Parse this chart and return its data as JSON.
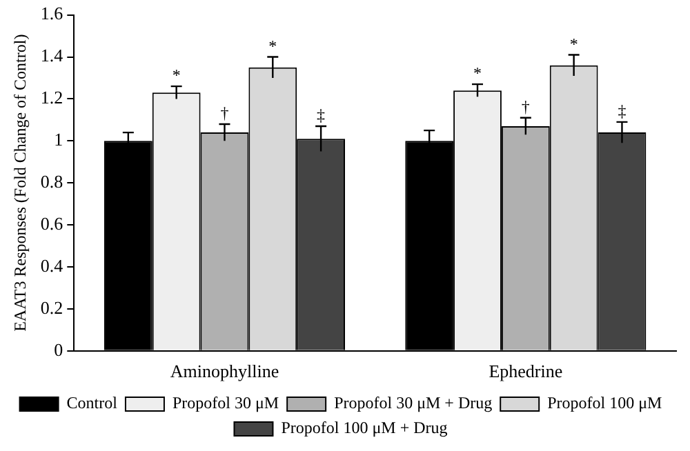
{
  "chart_data": {
    "type": "bar",
    "ylabel": "EAAT3 Responses (Fold Change of Control)",
    "categories": [
      "Aminophylline",
      "Ephedrine"
    ],
    "series": [
      {
        "name": "Control",
        "color": "#000000",
        "values": [
          1.0,
          1.0
        ],
        "errors": [
          0.04,
          0.05
        ]
      },
      {
        "name": "Propofol 30 μM",
        "color": "#eeeeee",
        "values": [
          1.23,
          1.24
        ],
        "errors": [
          0.03,
          0.03
        ],
        "value_labels": [
          "*",
          "*"
        ]
      },
      {
        "name": "Propofol 30 μM + Drug",
        "color": "#b0b0b0",
        "values": [
          1.04,
          1.07
        ],
        "errors": [
          0.04,
          0.04
        ],
        "value_labels": [
          "†",
          "†"
        ]
      },
      {
        "name": "Propofol 100 μM",
        "color": "#d8d8d8",
        "values": [
          1.35,
          1.36
        ],
        "errors": [
          0.05,
          0.05
        ],
        "value_labels": [
          "*",
          "*"
        ]
      },
      {
        "name": "Propofol 100 μM + Drug",
        "color": "#444444",
        "values": [
          1.01,
          1.04
        ],
        "errors": [
          0.06,
          0.05
        ],
        "value_labels": [
          "‡",
          "‡"
        ]
      }
    ],
    "ylim": [
      0,
      1.6
    ],
    "yticks": [
      0,
      0.2,
      0.4,
      0.6,
      0.8,
      1,
      1.2,
      1.4,
      1.6
    ],
    "grid": false,
    "legend": "bottom"
  }
}
